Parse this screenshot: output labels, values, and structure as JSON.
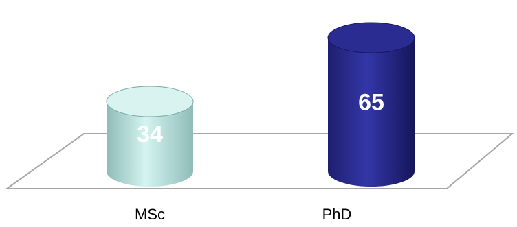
{
  "chart_data": {
    "type": "bar",
    "style": "3d-cylinder",
    "categories": [
      "MSc",
      "PhD"
    ],
    "values": [
      34,
      65
    ],
    "data_labels": [
      "34",
      "65"
    ],
    "colors": [
      "#c6ece8",
      "#2a2d8c"
    ],
    "title": "",
    "xlabel": "",
    "ylabel": "",
    "grid": false,
    "legend": "none"
  }
}
